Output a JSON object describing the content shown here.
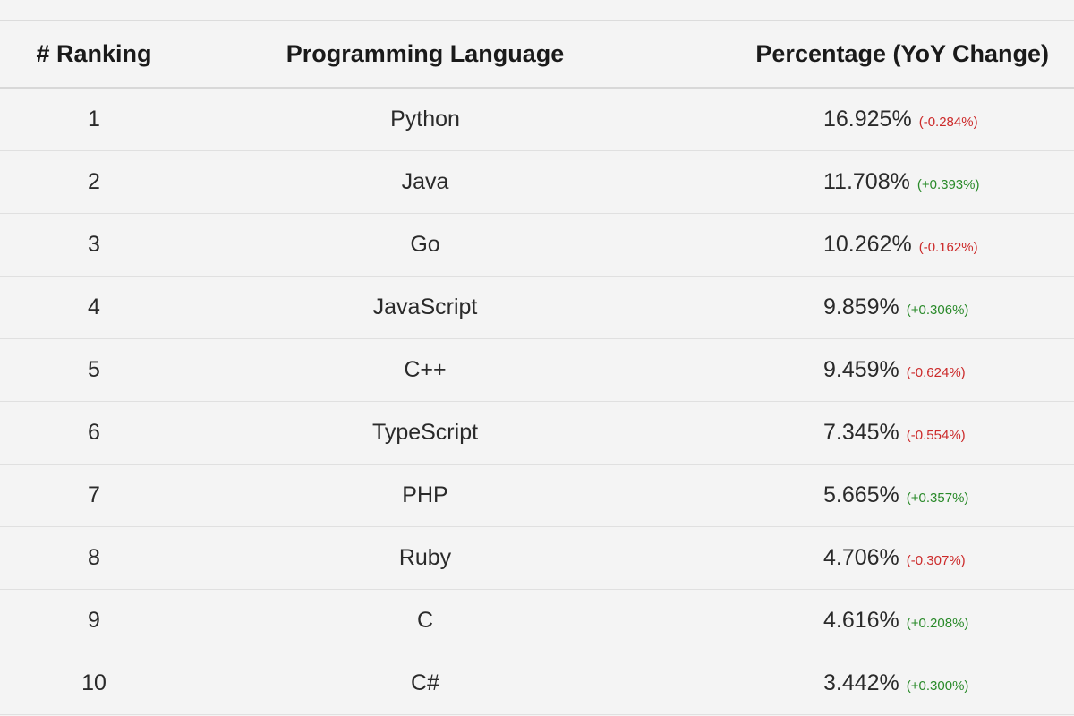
{
  "table": {
    "headers": {
      "rank": "# Ranking",
      "language": "Programming Language",
      "percentage": "Percentage (YoY Change)"
    },
    "rows": [
      {
        "rank": "1",
        "language": "Python",
        "percentage": "16.925%",
        "change": "(-0.284%)",
        "trend": "negative"
      },
      {
        "rank": "2",
        "language": "Java",
        "percentage": "11.708%",
        "change": "(+0.393%)",
        "trend": "positive"
      },
      {
        "rank": "3",
        "language": "Go",
        "percentage": "10.262%",
        "change": "(-0.162%)",
        "trend": "negative"
      },
      {
        "rank": "4",
        "language": "JavaScript",
        "percentage": "9.859%",
        "change": "(+0.306%)",
        "trend": "positive"
      },
      {
        "rank": "5",
        "language": "C++",
        "percentage": "9.459%",
        "change": "(-0.624%)",
        "trend": "negative"
      },
      {
        "rank": "6",
        "language": "TypeScript",
        "percentage": "7.345%",
        "change": "(-0.554%)",
        "trend": "negative"
      },
      {
        "rank": "7",
        "language": "PHP",
        "percentage": "5.665%",
        "change": "(+0.357%)",
        "trend": "positive"
      },
      {
        "rank": "8",
        "language": "Ruby",
        "percentage": "4.706%",
        "change": "(-0.307%)",
        "trend": "negative"
      },
      {
        "rank": "9",
        "language": "C",
        "percentage": "4.616%",
        "change": "(+0.208%)",
        "trend": "positive"
      },
      {
        "rank": "10",
        "language": "C#",
        "percentage": "3.442%",
        "change": "(+0.300%)",
        "trend": "positive"
      }
    ]
  },
  "colors": {
    "negative": "#cc2a2a",
    "positive": "#2a8a2a",
    "background": "#f4f4f4"
  }
}
